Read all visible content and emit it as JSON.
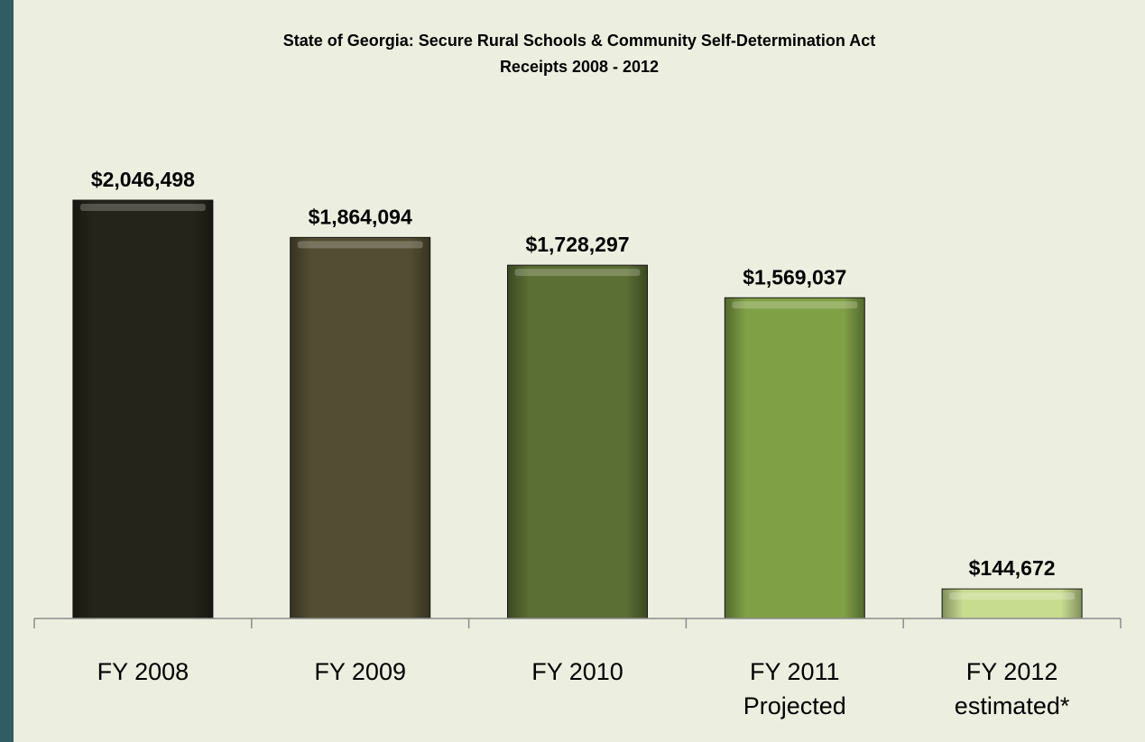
{
  "chart_data": {
    "type": "bar",
    "title": "State of Georgia: Secure Rural Schools & Community Self-Determination Act",
    "subtitle": "Receipts 2008 - 2012",
    "categories": [
      [
        "FY 2008"
      ],
      [
        "FY 2009"
      ],
      [
        "FY 2010"
      ],
      [
        "FY 2011",
        "Projected"
      ],
      [
        "FY 2012",
        "estimated*"
      ]
    ],
    "values": [
      2046498,
      1864094,
      1728297,
      1569037,
      144672
    ],
    "value_labels": [
      "$2,046,498",
      "$1,864,094",
      "$1,728,297",
      "$1,569,037",
      "$144,672"
    ],
    "bar_colors": [
      "#25241a",
      "#534e33",
      "#5b6e33",
      "#80a046",
      "#c8dc90"
    ],
    "xlabel": "",
    "ylabel": "",
    "ylim": [
      0,
      2046498
    ],
    "grid": false,
    "legend": "none"
  }
}
